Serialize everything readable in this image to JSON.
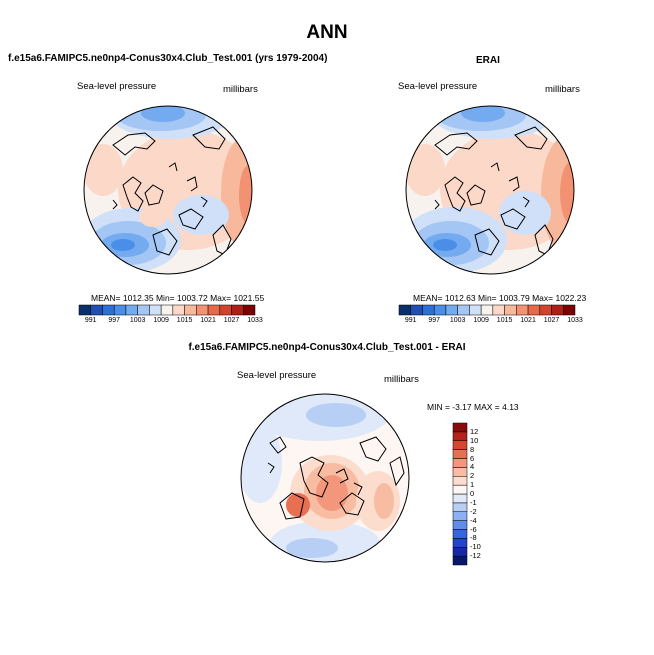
{
  "main_title": "ANN",
  "panels": [
    {
      "title": "f.e15a6.FAMIPC5.ne0np4-Conus30x4.Club_Test.001 (yrs 1979-2004)",
      "variable": "Sea-level pressure",
      "units": "millibars",
      "stats": "MEAN= 1012.35  Min= 1003.72  Max= 1021.55"
    },
    {
      "title": "ERAI",
      "variable": "Sea-level pressure",
      "units": "millibars",
      "stats": "MEAN= 1012.63  Min= 1003.79  Max= 1022.23"
    },
    {
      "title": "f.e15a6.FAMIPC5.ne0np4-Conus30x4.Club_Test.001 - ERAI",
      "variable": "Sea-level pressure",
      "units": "millibars",
      "stats": "MIN =  -3.17 MAX =  4.13"
    }
  ],
  "colors": {
    "abs_scale": [
      "#08306b",
      "#1f4eb4",
      "#2c6fd6",
      "#4a8ee8",
      "#74aaf0",
      "#a3c6f5",
      "#cfe0f8",
      "#f7f2ee",
      "#fbd8c7",
      "#f8b89c",
      "#f29272",
      "#e8694a",
      "#d2422c",
      "#b01e18",
      "#800000"
    ],
    "diff_scale": [
      "#07186b",
      "#1628a8",
      "#2244cc",
      "#3366e0",
      "#5f8de9",
      "#8cb0f0",
      "#b8cff5",
      "#dfe9fa",
      "#fdf6f2",
      "#fbdccd",
      "#f8bca3",
      "#f2977b",
      "#e86f52",
      "#d6472f",
      "#b6231a",
      "#8a0b0b"
    ]
  },
  "chart_data": [
    {
      "type": "heatmap",
      "title": "f.e15a6.FAMIPC5.ne0np4-Conus30x4.Club_Test.001 (yrs 1979-2004)",
      "variable": "Sea-level pressure",
      "units": "millibars",
      "projection": "north polar stereographic",
      "mean": 1012.35,
      "min": 1003.72,
      "max": 1021.55,
      "colorbar_ticks": [
        "991",
        "997",
        "1003",
        "1009",
        "1015",
        "1021",
        "1027",
        "1033"
      ]
    },
    {
      "type": "heatmap",
      "title": "ERAI",
      "variable": "Sea-level pressure",
      "units": "millibars",
      "projection": "north polar stereographic",
      "mean": 1012.63,
      "min": 1003.79,
      "max": 1022.23,
      "colorbar_ticks": [
        "991",
        "997",
        "1003",
        "1009",
        "1015",
        "1021",
        "1027",
        "1033"
      ]
    },
    {
      "type": "heatmap",
      "title": "f.e15a6.FAMIPC5.ne0np4-Conus30x4.Club_Test.001 - ERAI",
      "variable": "Sea-level pressure",
      "units": "millibars",
      "projection": "north polar stereographic",
      "min": -3.17,
      "max": 4.13,
      "colorbar_ticks": [
        "12",
        "10",
        "8",
        "6",
        "4",
        "2",
        "1",
        "0",
        "-1",
        "-2",
        "-4",
        "-6",
        "-8",
        "-10",
        "-12"
      ]
    }
  ]
}
